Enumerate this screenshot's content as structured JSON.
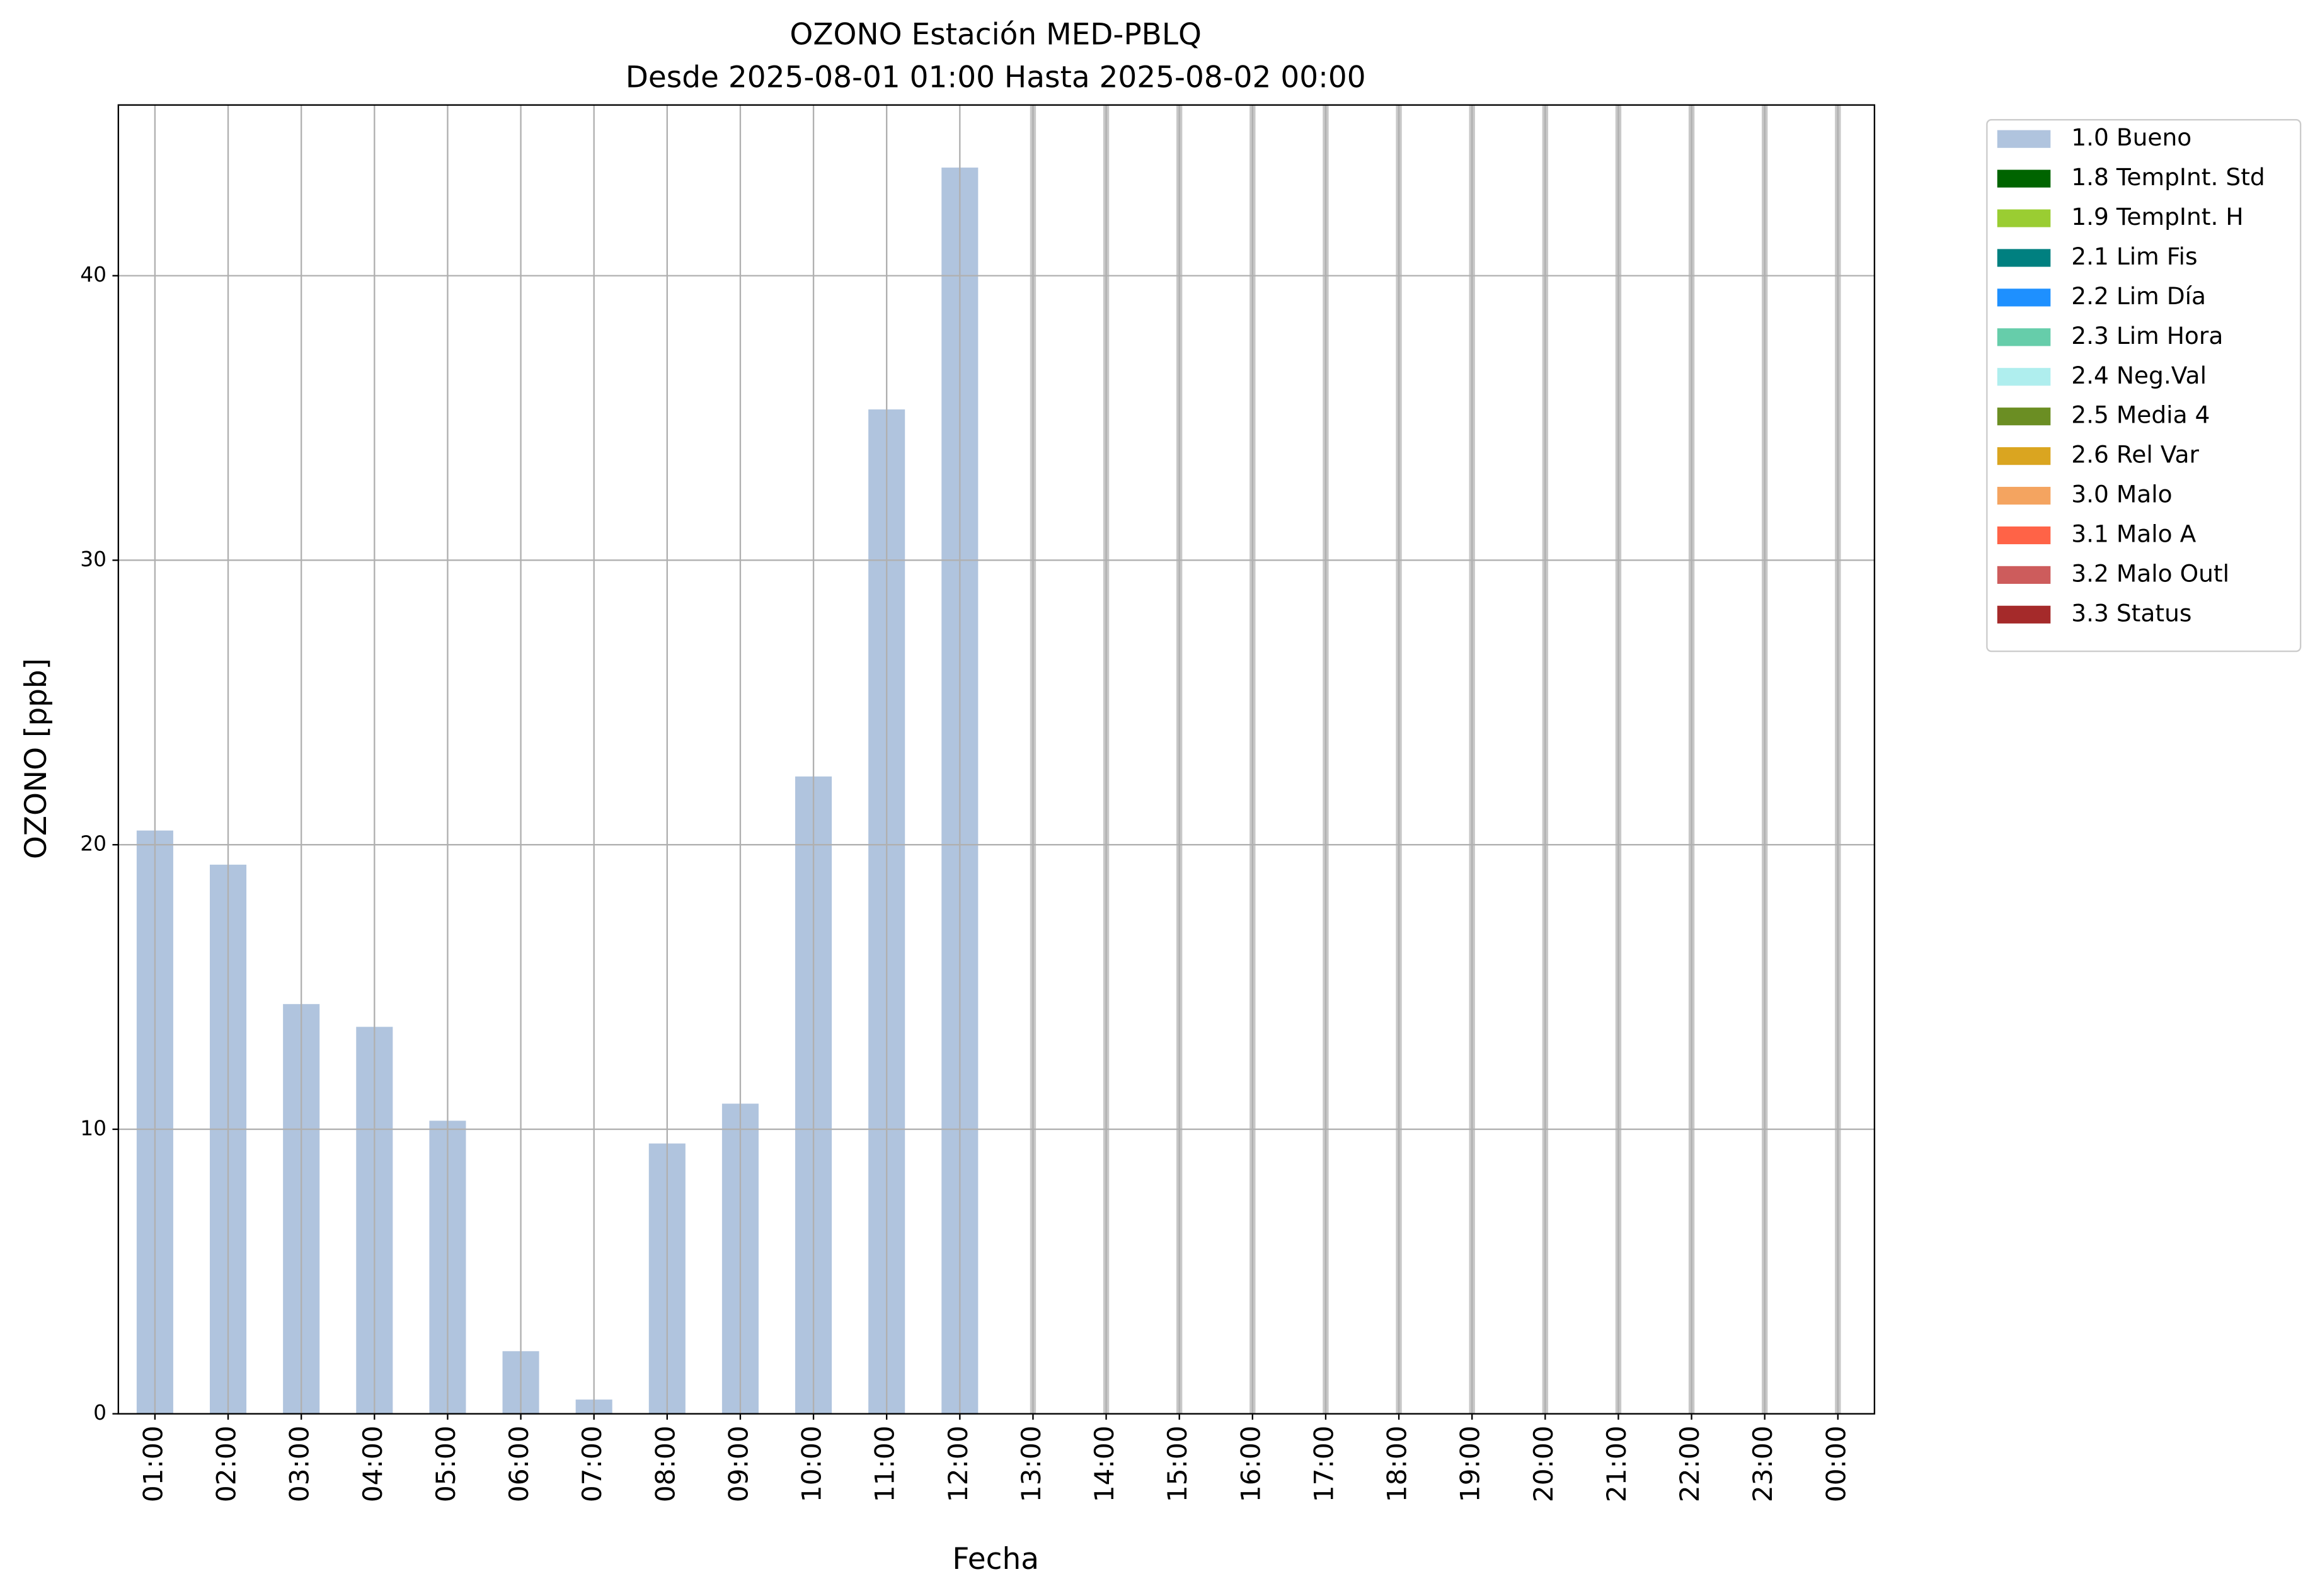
{
  "chart_data": {
    "type": "bar",
    "title": "OZONO Estación MED-PBLQ",
    "subtitle": "Desde 2025-08-01 01:00 Hasta 2025-08-02 00:00",
    "x_label": "Fecha",
    "y_label": "OZONO [ppb]",
    "categories": [
      "01:00",
      "02:00",
      "03:00",
      "04:00",
      "05:00",
      "06:00",
      "07:00",
      "08:00",
      "09:00",
      "10:00",
      "11:00",
      "12:00",
      "13:00",
      "14:00",
      "15:00",
      "16:00",
      "17:00",
      "18:00",
      "19:00",
      "20:00",
      "21:00",
      "22:00",
      "23:00",
      "00:00"
    ],
    "series": [
      {
        "name": "1.0 Bueno",
        "color": "#b0c4de",
        "values": [
          20.5,
          19.3,
          14.4,
          13.6,
          10.3,
          2.2,
          0.5,
          9.5,
          10.9,
          22.4,
          35.3,
          43.8,
          null,
          null,
          null,
          null,
          null,
          null,
          null,
          null,
          null,
          null,
          null,
          null
        ]
      },
      {
        "name": "1.8 TempInt. Std",
        "color": "#006400",
        "values": [
          null,
          null,
          null,
          null,
          null,
          null,
          null,
          null,
          null,
          null,
          null,
          null,
          null,
          null,
          null,
          null,
          null,
          null,
          null,
          null,
          null,
          null,
          null,
          null
        ]
      },
      {
        "name": "1.9 TempInt. H",
        "color": "#9acd32",
        "values": [
          null,
          null,
          null,
          null,
          null,
          null,
          null,
          null,
          null,
          null,
          null,
          null,
          null,
          null,
          null,
          null,
          null,
          null,
          null,
          null,
          null,
          null,
          null,
          null
        ]
      },
      {
        "name": "2.1 Lim Fis",
        "color": "#008080",
        "values": [
          null,
          null,
          null,
          null,
          null,
          null,
          null,
          null,
          null,
          null,
          null,
          null,
          null,
          null,
          null,
          null,
          null,
          null,
          null,
          null,
          null,
          null,
          null,
          null
        ]
      },
      {
        "name": "2.2 Lim Día",
        "color": "#1e90ff",
        "values": [
          null,
          null,
          null,
          null,
          null,
          null,
          null,
          null,
          null,
          null,
          null,
          null,
          null,
          null,
          null,
          null,
          null,
          null,
          null,
          null,
          null,
          null,
          null,
          null
        ]
      },
      {
        "name": "2.3 Lim Hora",
        "color": "#66cdaa",
        "values": [
          null,
          null,
          null,
          null,
          null,
          null,
          null,
          null,
          null,
          null,
          null,
          null,
          null,
          null,
          null,
          null,
          null,
          null,
          null,
          null,
          null,
          null,
          null,
          null
        ]
      },
      {
        "name": "2.4 Neg.Val",
        "color": "#afeeee",
        "values": [
          null,
          null,
          null,
          null,
          null,
          null,
          null,
          null,
          null,
          null,
          null,
          null,
          null,
          null,
          null,
          null,
          null,
          null,
          null,
          null,
          null,
          null,
          null,
          null
        ]
      },
      {
        "name": "2.5 Media 4",
        "color": "#6b8e23",
        "values": [
          null,
          null,
          null,
          null,
          null,
          null,
          null,
          null,
          null,
          null,
          null,
          null,
          null,
          null,
          null,
          null,
          null,
          null,
          null,
          null,
          null,
          null,
          null,
          null
        ]
      },
      {
        "name": "2.6 Rel Var",
        "color": "#daa520",
        "values": [
          null,
          null,
          null,
          null,
          null,
          null,
          null,
          null,
          null,
          null,
          null,
          null,
          null,
          null,
          null,
          null,
          null,
          null,
          null,
          null,
          null,
          null,
          null,
          null
        ]
      },
      {
        "name": "3.0 Malo",
        "color": "#f4a460",
        "values": [
          null,
          null,
          null,
          null,
          null,
          null,
          null,
          null,
          null,
          null,
          null,
          null,
          null,
          null,
          null,
          null,
          null,
          null,
          null,
          null,
          null,
          null,
          null,
          null
        ]
      },
      {
        "name": "3.1 Malo A",
        "color": "#ff6347",
        "values": [
          null,
          null,
          null,
          null,
          null,
          null,
          null,
          null,
          null,
          null,
          null,
          null,
          null,
          null,
          null,
          null,
          null,
          null,
          null,
          null,
          null,
          null,
          null,
          null
        ]
      },
      {
        "name": "3.2 Malo Outl",
        "color": "#cd5c5c",
        "values": [
          null,
          null,
          null,
          null,
          null,
          null,
          null,
          null,
          null,
          null,
          null,
          null,
          null,
          null,
          null,
          null,
          null,
          null,
          null,
          null,
          null,
          null,
          null,
          null
        ]
      },
      {
        "name": "3.3 Status",
        "color": "#a52a2a",
        "values": [
          null,
          null,
          null,
          null,
          null,
          null,
          null,
          null,
          null,
          null,
          null,
          null,
          null,
          null,
          null,
          null,
          null,
          null,
          null,
          null,
          null,
          null,
          null,
          null
        ]
      }
    ],
    "ylim": [
      0,
      46
    ],
    "yticks": [
      0,
      10,
      20,
      30,
      40
    ],
    "grid": true,
    "stacked": true,
    "legend": "outside-upper-right"
  }
}
